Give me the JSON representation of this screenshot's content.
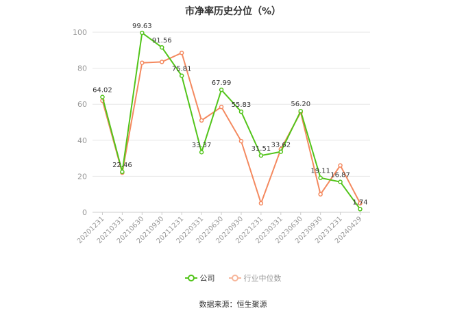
{
  "chart_data": {
    "type": "line",
    "title": "市净率历史分位（%）",
    "categories": [
      "20201231",
      "20210331",
      "20210630",
      "20210930",
      "20211231",
      "20220331",
      "20220630",
      "20220930",
      "20221231",
      "20230331",
      "20230630",
      "20230930",
      "20231231",
      "20240429"
    ],
    "series": [
      {
        "name": "公司",
        "color": "#52c41a",
        "values": [
          64.02,
          22.46,
          99.63,
          91.56,
          75.81,
          33.37,
          67.99,
          55.83,
          31.51,
          33.62,
          56.2,
          19.11,
          16.87,
          1.74
        ],
        "labels": [
          "64.02",
          "22.46",
          "99.63",
          "91.56",
          "75.81",
          "33.37",
          "67.99",
          "55.83",
          "31.51",
          "33.62",
          "56.20",
          "19.11",
          "16.87",
          "1.74"
        ]
      },
      {
        "name": "行业中位数",
        "color": "#f4895f",
        "values": [
          62,
          22,
          83,
          83.5,
          88.5,
          51,
          58.5,
          39.5,
          5,
          35,
          55.5,
          10,
          26,
          5
        ]
      }
    ],
    "ylim": [
      0,
      100
    ],
    "yticks": [
      0,
      20,
      40,
      60,
      80,
      100
    ],
    "legend_position": "bottom",
    "grid": true
  },
  "source_text": "数据来源：恒生聚源"
}
